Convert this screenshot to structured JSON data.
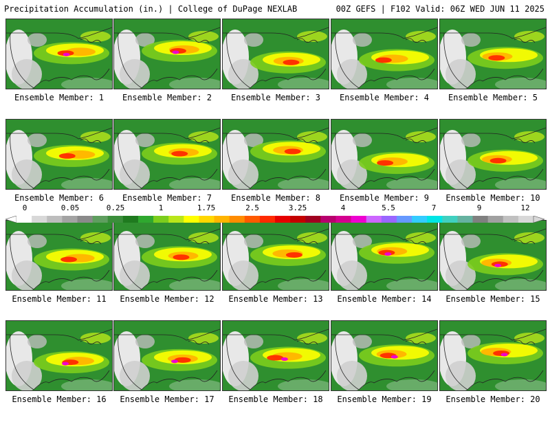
{
  "header": {
    "left": "Precipitation Accumulation (in.) | College of DuPage NEXLAB",
    "right": "00Z GEFS | F102 Valid: 06Z WED JUN 11 2025"
  },
  "panels": [
    {
      "label": "Ensemble Member: 1"
    },
    {
      "label": "Ensemble Member: 2"
    },
    {
      "label": "Ensemble Member: 3"
    },
    {
      "label": "Ensemble Member: 4"
    },
    {
      "label": "Ensemble Member: 5"
    },
    {
      "label": "Ensemble Member: 6"
    },
    {
      "label": "Ensemble Member: 7"
    },
    {
      "label": "Ensemble Member: 8"
    },
    {
      "label": "Ensemble Member: 9"
    },
    {
      "label": "Ensemble Member: 10"
    },
    {
      "label": "Ensemble Member: 11"
    },
    {
      "label": "Ensemble Member: 12"
    },
    {
      "label": "Ensemble Member: 13"
    },
    {
      "label": "Ensemble Member: 14"
    },
    {
      "label": "Ensemble Member: 15"
    },
    {
      "label": "Ensemble Member: 16"
    },
    {
      "label": "Ensemble Member: 17"
    },
    {
      "label": "Ensemble Member: 18"
    },
    {
      "label": "Ensemble Member: 19"
    },
    {
      "label": "Ensemble Member: 20"
    }
  ],
  "colorbar": {
    "tick_labels": [
      "0",
      "0.05",
      "0.25",
      "1",
      "1.75",
      "2.5",
      "3.25",
      "4",
      "5.5",
      "7",
      "9",
      "12"
    ],
    "colors": [
      "#ffffff",
      "#d8d8d8",
      "#bdbdbd",
      "#a3a3a3",
      "#8a8a8a",
      "#5f9e5f",
      "#3b8e3b",
      "#1f7a1f",
      "#2fa82f",
      "#7ccd1d",
      "#b9e61a",
      "#ffff00",
      "#ffd700",
      "#ffb400",
      "#ff8c00",
      "#ff5a00",
      "#ff2a00",
      "#e60000",
      "#c40000",
      "#a00020",
      "#b8006e",
      "#d4008f",
      "#ee00d0",
      "#cc66ff",
      "#9966ff",
      "#6699ff",
      "#33ccff",
      "#00e5e5",
      "#40d0c0",
      "#66b2a0",
      "#808080",
      "#a0a0a0",
      "#c0c0c0",
      "#d8d8d8"
    ]
  }
}
